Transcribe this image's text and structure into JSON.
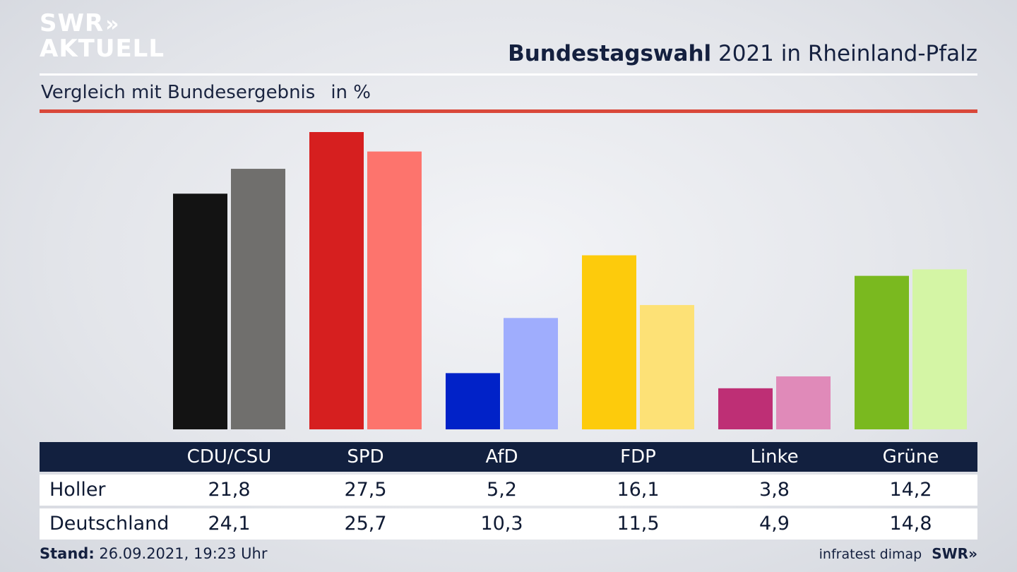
{
  "header": {
    "logo_line1": "SWR",
    "logo_chevrons": "»",
    "logo_line2": "AKTUELL",
    "title_bold": "Bundestagswahl",
    "title_rest": " 2021 in Rheinland-Pfalz",
    "subtitle": "Vergleich mit Bundesergebnis",
    "unit": "in %"
  },
  "colors": {
    "accent_red_rule": "#d9483a",
    "table_header": "#12203f"
  },
  "chart_data": {
    "type": "bar",
    "categories": [
      "CDU/CSU",
      "SPD",
      "AfD",
      "FDP",
      "Linke",
      "Grüne"
    ],
    "series": [
      {
        "name": "Holler",
        "values": [
          21.8,
          27.5,
          5.2,
          16.1,
          3.8,
          14.2
        ],
        "colors": [
          "#131313",
          "#d61f1f",
          "#0122c8",
          "#fdcb0c",
          "#be2f75",
          "#7ab91f"
        ]
      },
      {
        "name": "Deutschland",
        "values": [
          24.1,
          25.7,
          10.3,
          11.5,
          4.9,
          14.8
        ],
        "colors": [
          "#706f6d",
          "#fd746d",
          "#9fadfd",
          "#fde176",
          "#e08ab9",
          "#d4f5a5"
        ]
      }
    ],
    "value_labels": [
      [
        "21,8",
        "27,5",
        "5,2",
        "16,1",
        "3,8",
        "14,2"
      ],
      [
        "24,1",
        "25,7",
        "10,3",
        "11,5",
        "4,9",
        "14,8"
      ]
    ],
    "ylim": [
      0,
      27.5
    ],
    "grid": false,
    "legend": "table-below"
  },
  "footer": {
    "stand_label": "Stand:",
    "stand_value": " 26.09.2021, 19:23 Uhr",
    "source": "infratest dimap",
    "brand": "SWR»"
  }
}
